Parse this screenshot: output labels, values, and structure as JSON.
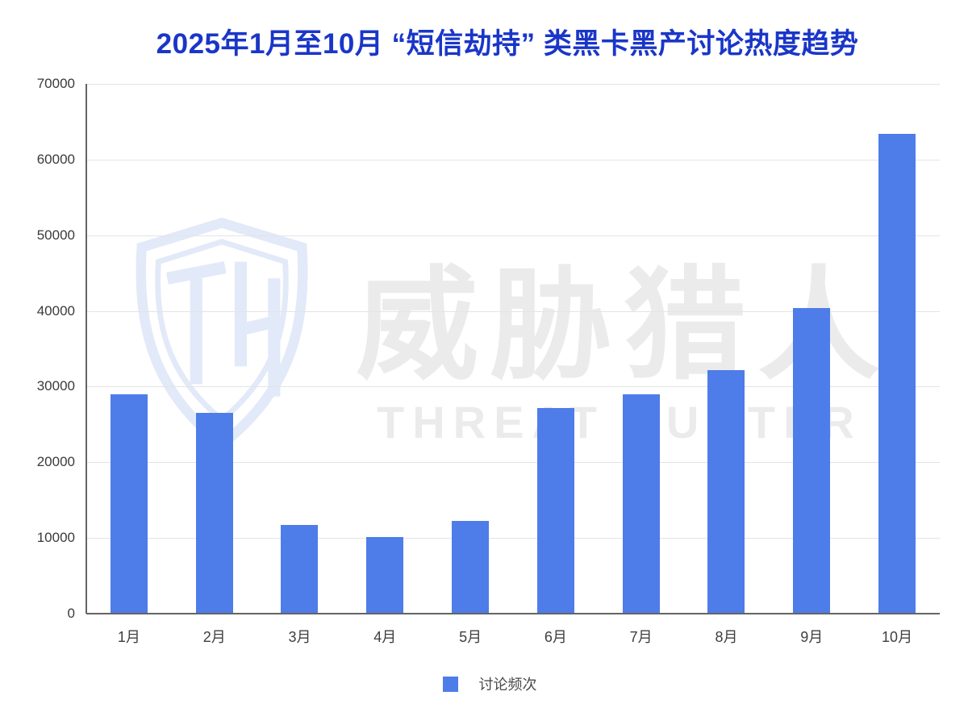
{
  "title": "2025年1月至10月 “短信劫持” 类黑卡黑产讨论热度趋势",
  "colors": {
    "bar": "#4e7ce9",
    "title": "#1a36c8",
    "gridline": "#e4e4e4",
    "axis": "#646464",
    "watermark_logo": "#e2e9f8",
    "watermark_text": "#ebebeb"
  },
  "watermark": {
    "logo": "threat-hunter-shield",
    "cn_text": "威胁猎人",
    "en_text": "THREAT HUNTER"
  },
  "legend": {
    "label": "讨论频次"
  },
  "chart_data": {
    "type": "bar",
    "title": "2025年1月至10月 “短信劫持” 类黑卡黑产讨论热度趋势",
    "categories": [
      "1月",
      "2月",
      "3月",
      "4月",
      "5月",
      "6月",
      "7月",
      "8月",
      "9月",
      "10月"
    ],
    "series": [
      {
        "name": "讨论频次",
        "values": [
          29000,
          26500,
          11700,
          10100,
          12300,
          27200,
          29000,
          32200,
          40400,
          63400
        ]
      }
    ],
    "xlabel": "",
    "ylabel": "",
    "ylim": [
      0,
      70000
    ],
    "ytick_step": 10000,
    "ytick_labels": [
      "0",
      "10000",
      "20000",
      "30000",
      "40000",
      "50000",
      "60000",
      "70000"
    ],
    "grid": true,
    "legend_position": "bottom"
  }
}
